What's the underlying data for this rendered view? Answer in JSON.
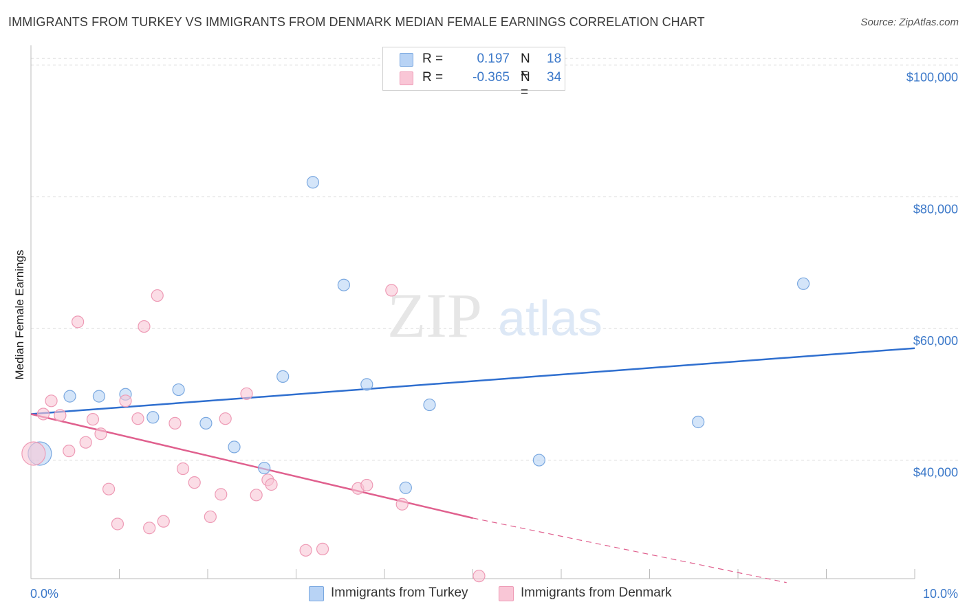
{
  "title": "IMMIGRANTS FROM TURKEY VS IMMIGRANTS FROM DENMARK MEDIAN FEMALE EARNINGS CORRELATION CHART",
  "source": "Source: ZipAtlas.com",
  "watermark": {
    "zip": "ZIP",
    "atlas": "atlas"
  },
  "legend": {
    "turkey": {
      "r_label": "R =",
      "r_value": "0.197",
      "n_label": "N =",
      "n_value": "18"
    },
    "denmark": {
      "r_label": "R =",
      "r_value": "-0.365",
      "n_label": "N =",
      "n_value": "34"
    }
  },
  "bottom_legend": {
    "turkey": "Immigrants from Turkey",
    "denmark": "Immigrants from Denmark"
  },
  "colors": {
    "turkey_fill": "#b8d3f5",
    "turkey_stroke": "#7aa8e0",
    "turkey_line": "#2f6fcf",
    "denmark_fill": "#f9c6d6",
    "denmark_stroke": "#ee9ab5",
    "denmark_line": "#e0608e",
    "tick_text": "#3b78c9",
    "grid": "#d9d9d9"
  },
  "chart_data": {
    "type": "scatter",
    "xlabel": "",
    "ylabel": "Median Female Earnings",
    "xlim": [
      0,
      10
    ],
    "ylim": [
      22000,
      103000
    ],
    "x_tick_labels": {
      "min": "0.0%",
      "max": "10.0%"
    },
    "y_ticks": [
      {
        "value": 40000,
        "label": "$40,000"
      },
      {
        "value": 60000,
        "label": "$60,000"
      },
      {
        "value": 80000,
        "label": "$80,000"
      },
      {
        "value": 100000,
        "label": "$100,000"
      }
    ],
    "series": [
      {
        "name": "Immigrants from Turkey",
        "key": "turkey",
        "points": [
          {
            "x": 0.1,
            "y": 41000,
            "big": true
          },
          {
            "x": 0.44,
            "y": 49700
          },
          {
            "x": 0.77,
            "y": 49700
          },
          {
            "x": 1.07,
            "y": 50000
          },
          {
            "x": 1.38,
            "y": 46500
          },
          {
            "x": 1.67,
            "y": 50700
          },
          {
            "x": 1.98,
            "y": 45600
          },
          {
            "x": 2.3,
            "y": 42000
          },
          {
            "x": 2.64,
            "y": 38800
          },
          {
            "x": 2.85,
            "y": 52700
          },
          {
            "x": 3.19,
            "y": 82200
          },
          {
            "x": 3.54,
            "y": 66600
          },
          {
            "x": 3.8,
            "y": 51500
          },
          {
            "x": 4.24,
            "y": 35800
          },
          {
            "x": 4.51,
            "y": 48400
          },
          {
            "x": 5.75,
            "y": 40000
          },
          {
            "x": 7.55,
            "y": 45800
          },
          {
            "x": 8.74,
            "y": 66800
          }
        ],
        "trend": {
          "x": [
            0,
            10
          ],
          "y": [
            47000,
            57000
          ]
        }
      },
      {
        "name": "Immigrants from Denmark",
        "key": "denmark",
        "points": [
          {
            "x": 0.03,
            "y": 41000,
            "big": true
          },
          {
            "x": 0.14,
            "y": 47000
          },
          {
            "x": 0.23,
            "y": 49000
          },
          {
            "x": 0.33,
            "y": 46800
          },
          {
            "x": 0.43,
            "y": 41400
          },
          {
            "x": 0.53,
            "y": 61000
          },
          {
            "x": 0.62,
            "y": 42700
          },
          {
            "x": 0.7,
            "y": 46200
          },
          {
            "x": 0.79,
            "y": 44000
          },
          {
            "x": 0.88,
            "y": 35600
          },
          {
            "x": 0.98,
            "y": 30300
          },
          {
            "x": 1.07,
            "y": 49000
          },
          {
            "x": 1.21,
            "y": 46300
          },
          {
            "x": 1.28,
            "y": 60300
          },
          {
            "x": 1.34,
            "y": 29700
          },
          {
            "x": 1.43,
            "y": 65000
          },
          {
            "x": 1.5,
            "y": 30700
          },
          {
            "x": 1.63,
            "y": 45600
          },
          {
            "x": 1.72,
            "y": 38700
          },
          {
            "x": 1.85,
            "y": 36600
          },
          {
            "x": 2.03,
            "y": 31400
          },
          {
            "x": 2.15,
            "y": 34800
          },
          {
            "x": 2.2,
            "y": 46300
          },
          {
            "x": 2.44,
            "y": 50100
          },
          {
            "x": 2.55,
            "y": 34700
          },
          {
            "x": 2.68,
            "y": 37000
          },
          {
            "x": 2.72,
            "y": 36300
          },
          {
            "x": 3.11,
            "y": 26300
          },
          {
            "x": 3.3,
            "y": 26500
          },
          {
            "x": 3.7,
            "y": 35700
          },
          {
            "x": 3.8,
            "y": 36200
          },
          {
            "x": 4.08,
            "y": 65800
          },
          {
            "x": 4.2,
            "y": 33300
          },
          {
            "x": 5.07,
            "y": 22400
          }
        ],
        "trend": {
          "x": [
            0,
            5
          ],
          "y": [
            47000,
            31200
          ]
        },
        "trend_dashed": {
          "x": [
            5,
            8.55
          ],
          "y": [
            31200,
            21400
          ]
        }
      }
    ]
  }
}
